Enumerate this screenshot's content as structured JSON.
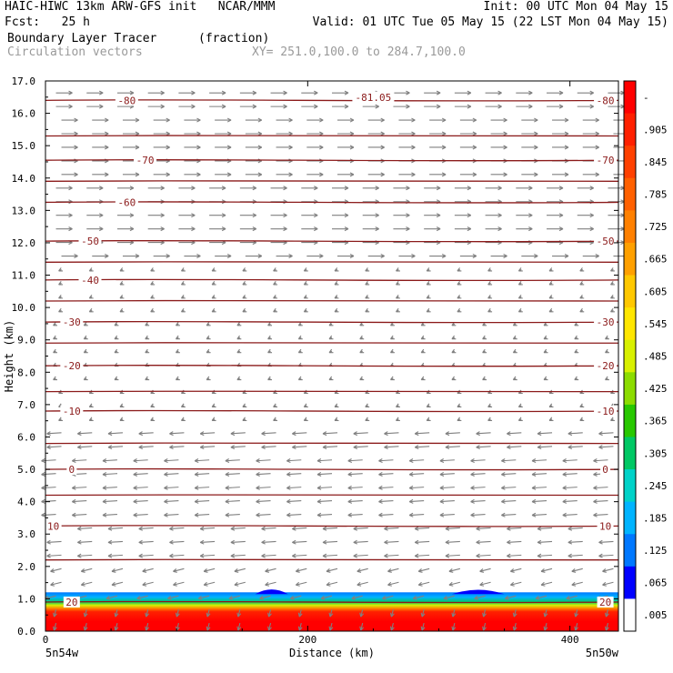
{
  "header": {
    "line1_left": "HAIC-HIWC 13km ARW-GFS init   NCAR/MMM",
    "line1_right": "Init: 00 UTC Mon 04 May 15",
    "line2_left": "Fcst:   25 h",
    "line2_right": "Valid: 01 UTC Tue 05 May 15 (22 LST Mon 04 May 15)",
    "field_name": "Boundary Layer Tracer",
    "field_units": "(fraction)",
    "vector_name": "Circulation vectors",
    "xy_range": "XY= 251.0,100.0 to 284.7,100.0"
  },
  "colors": {
    "contour": "#8b1a1a",
    "vector": "#808080",
    "tracer_low": "#0000ff",
    "tracer_high": "#ff0000"
  },
  "chart_data": {
    "type": "heatmap",
    "ylabel": "Height (km)",
    "xlabel": "Distance (km)",
    "x_range_km": [
      0,
      437
    ],
    "ylim": [
      0,
      17
    ],
    "y_ticks": [
      "0.0",
      "1.0",
      "2.0",
      "3.0",
      "4.0",
      "5.0",
      "6.0",
      "7.0",
      "8.0",
      "9.0",
      "10.0",
      "11.0",
      "12.0",
      "13.0",
      "14.0",
      "15.0",
      "16.0",
      "17.0"
    ],
    "x_ticks": [
      {
        "value": 0,
        "label": "0"
      },
      {
        "value": 200,
        "label": "200"
      },
      {
        "value": 400,
        "label": "400"
      }
    ],
    "x_endpoint_left": "5n54w",
    "x_endpoint_right": "5n50w",
    "colorbar": {
      "levels": [
        "-",
        ".905",
        ".845",
        ".785",
        ".725",
        ".665",
        ".605",
        ".545",
        ".485",
        ".425",
        ".365",
        ".305",
        ".245",
        ".185",
        ".125",
        ".065",
        ".005"
      ],
      "colors": [
        "#ff0000",
        "#ff2000",
        "#ff4000",
        "#ff6000",
        "#ff8000",
        "#ffa000",
        "#ffc800",
        "#ffe600",
        "#d8f000",
        "#8cdc00",
        "#28c800",
        "#00c864",
        "#00d2c8",
        "#00b4ff",
        "#0078ff",
        "#0000ff",
        "#ffffff"
      ]
    },
    "tracer_profile": [
      {
        "height_km": 0.0,
        "value": 1.0
      },
      {
        "height_km": 0.3,
        "value": 0.98
      },
      {
        "height_km": 0.6,
        "value": 0.95
      },
      {
        "height_km": 0.7,
        "value": 0.75
      },
      {
        "height_km": 0.8,
        "value": 0.5
      },
      {
        "height_km": 0.9,
        "value": 0.3
      },
      {
        "height_km": 1.05,
        "value": 0.15
      },
      {
        "height_km": 1.2,
        "value": 0.05
      }
    ],
    "temperature_contours": [
      {
        "label": "-80",
        "height_km": 16.4,
        "label_positions_km": [
          62,
          427
        ]
      },
      {
        "label": "-81.05",
        "height_km": 16.5,
        "label_positions_km": [
          250
        ]
      },
      {
        "label": "-70",
        "height_km": 14.55,
        "label_positions_km": [
          76,
          427
        ]
      },
      {
        "label": "-60",
        "height_km": 13.25,
        "label_positions_km": [
          62
        ]
      },
      {
        "label": "-50",
        "height_km": 12.05,
        "label_positions_km": [
          34,
          427
        ]
      },
      {
        "label": "-40",
        "height_km": 10.85,
        "label_positions_km": [
          34
        ]
      },
      {
        "label": "-30",
        "height_km": 9.55,
        "label_positions_km": [
          20,
          427
        ]
      },
      {
        "label": "-20",
        "height_km": 8.2,
        "label_positions_km": [
          20,
          427
        ]
      },
      {
        "label": "-10",
        "height_km": 6.8,
        "label_positions_km": [
          20,
          427
        ]
      },
      {
        "label": "0",
        "height_km": 5.0,
        "label_positions_km": [
          20,
          427
        ]
      },
      {
        "label": "10",
        "height_km": 3.25,
        "label_positions_km": [
          6,
          427
        ]
      },
      {
        "label": "20",
        "height_km": 0.9,
        "label_positions_km": [
          20,
          427
        ]
      }
    ],
    "extra_contour_heights_km": [
      15.3,
      13.9,
      11.4,
      10.2,
      8.9,
      7.4,
      5.8,
      4.2,
      2.2
    ],
    "wind_direction_by_level": [
      {
        "below_km": 1.0,
        "direction": "vertical-down"
      },
      {
        "below_km": 2.0,
        "direction": "right-down"
      },
      {
        "below_km": 6.5,
        "direction": "left"
      },
      {
        "below_km": 11.5,
        "direction": "calm"
      },
      {
        "below_km": 17.0,
        "direction": "right"
      }
    ]
  }
}
